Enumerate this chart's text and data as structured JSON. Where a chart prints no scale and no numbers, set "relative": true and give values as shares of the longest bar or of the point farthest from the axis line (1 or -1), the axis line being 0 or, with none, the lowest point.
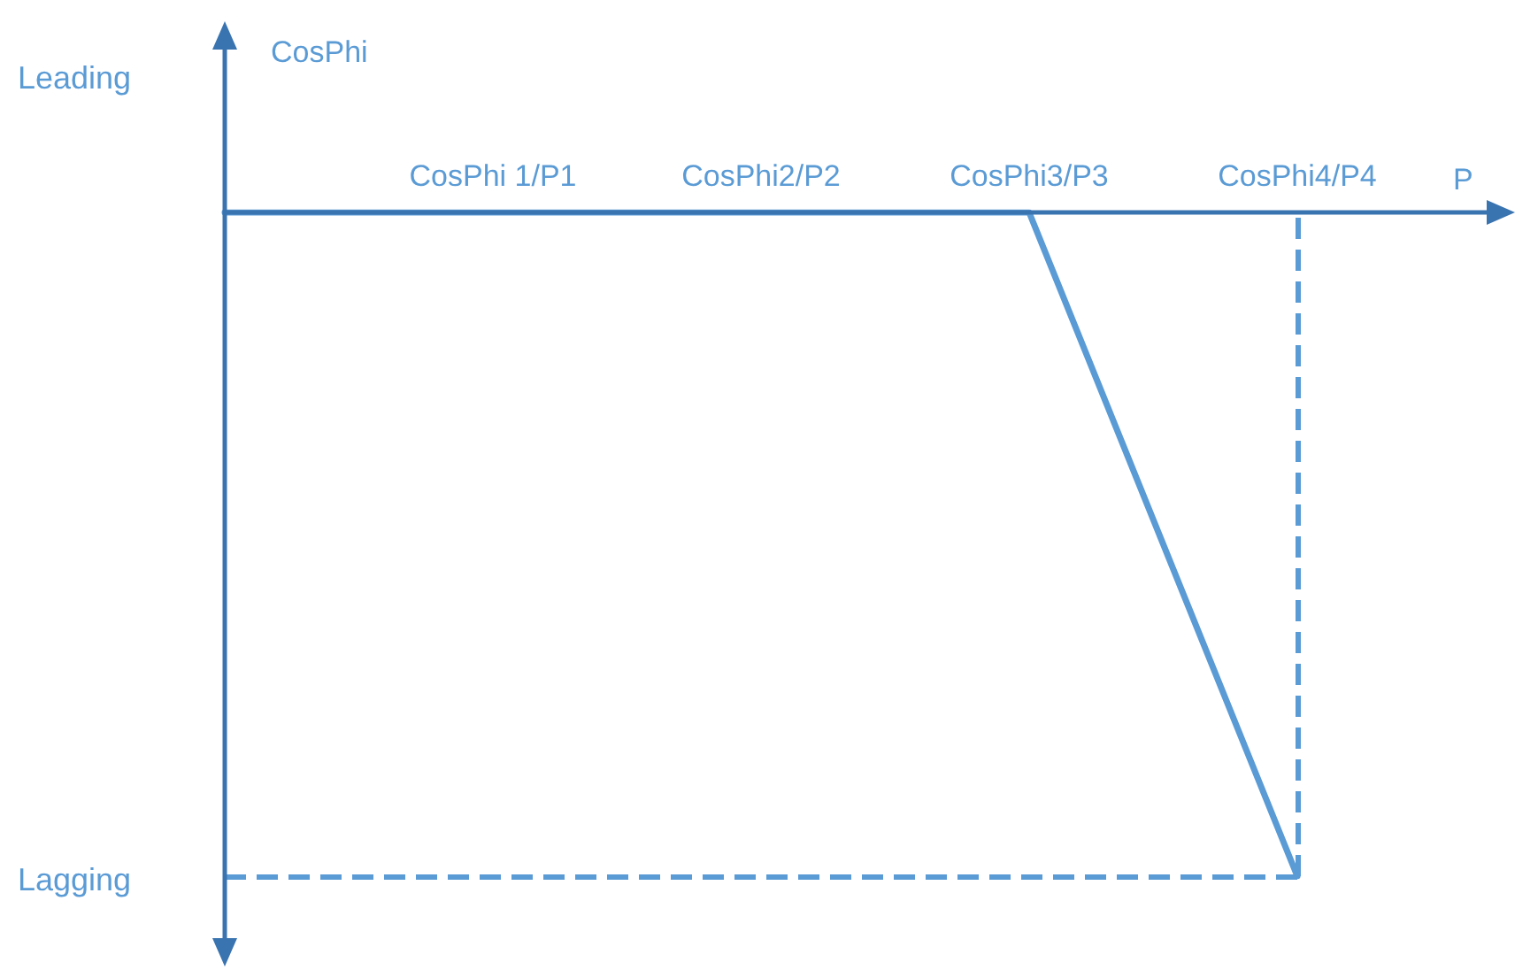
{
  "chart_data": {
    "type": "line",
    "relative": true,
    "xlabel": "P",
    "ylabel": "CosPhi",
    "categories": [
      null,
      "CosPhi 1/P1",
      "CosPhi2/P2",
      "CosPhi3/P3",
      "CosPhi4/P4"
    ],
    "series": [
      {
        "color": "#5b9bd5",
        "values": [
          0,
          0,
          0,
          0,
          -1
        ]
      }
    ],
    "annotations": [
      "Leading",
      "Lagging"
    ],
    "ref_lines": [
      {
        "axis": "y",
        "value": -1,
        "color": "#5b9bd5",
        "line_style": "dashed"
      },
      {
        "axis": "x",
        "value": "CosPhi4/P4",
        "color": "#5b9bd5",
        "line_style": "dashed"
      }
    ],
    "marker": "none",
    "line_style": "solid"
  }
}
